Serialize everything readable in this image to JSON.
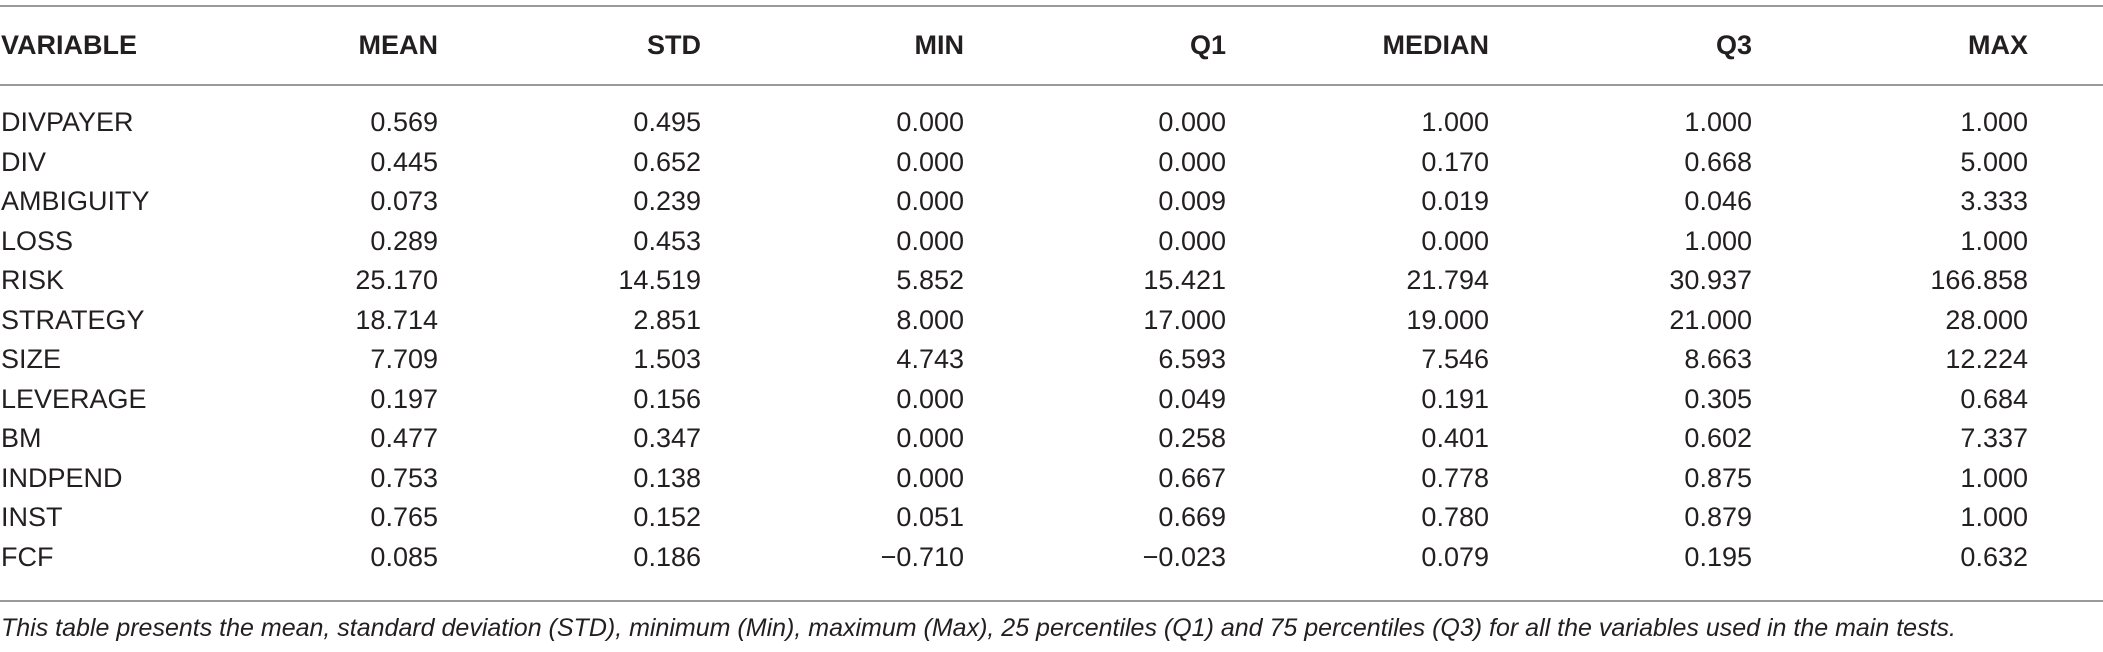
{
  "table": {
    "headers": [
      "VARIABLE",
      "MEAN",
      "STD",
      "MIN",
      "Q1",
      "MEDIAN",
      "Q3",
      "MAX"
    ],
    "rows": [
      [
        "DIVPAYER",
        "0.569",
        "0.495",
        "0.000",
        "0.000",
        "1.000",
        "1.000",
        "1.000"
      ],
      [
        "DIV",
        "0.445",
        "0.652",
        "0.000",
        "0.000",
        "0.170",
        "0.668",
        "5.000"
      ],
      [
        "AMBIGUITY",
        "0.073",
        "0.239",
        "0.000",
        "0.009",
        "0.019",
        "0.046",
        "3.333"
      ],
      [
        "LOSS",
        "0.289",
        "0.453",
        "0.000",
        "0.000",
        "0.000",
        "1.000",
        "1.000"
      ],
      [
        "RISK",
        "25.170",
        "14.519",
        "5.852",
        "15.421",
        "21.794",
        "30.937",
        "166.858"
      ],
      [
        "STRATEGY",
        "18.714",
        "2.851",
        "8.000",
        "17.000",
        "19.000",
        "21.000",
        "28.000"
      ],
      [
        "SIZE",
        "7.709",
        "1.503",
        "4.743",
        "6.593",
        "7.546",
        "8.663",
        "12.224"
      ],
      [
        "LEVERAGE",
        "0.197",
        "0.156",
        "0.000",
        "0.049",
        "0.191",
        "0.305",
        "0.684"
      ],
      [
        "BM",
        "0.477",
        "0.347",
        "0.000",
        "0.258",
        "0.401",
        "0.602",
        "7.337"
      ],
      [
        "INDPEND",
        "0.753",
        "0.138",
        "0.000",
        "0.667",
        "0.778",
        "0.875",
        "1.000"
      ],
      [
        "INST",
        "0.765",
        "0.152",
        "0.051",
        "0.669",
        "0.780",
        "0.879",
        "1.000"
      ],
      [
        "FCF",
        "0.085",
        "0.186",
        "−0.710",
        "−0.023",
        "0.079",
        "0.195",
        "0.632"
      ]
    ]
  },
  "note": "This table presents the mean, standard deviation (STD), minimum (Min), maximum (Max), 25 percentiles (Q1) and 75 percentiles (Q3) for all the variables used in the main tests."
}
